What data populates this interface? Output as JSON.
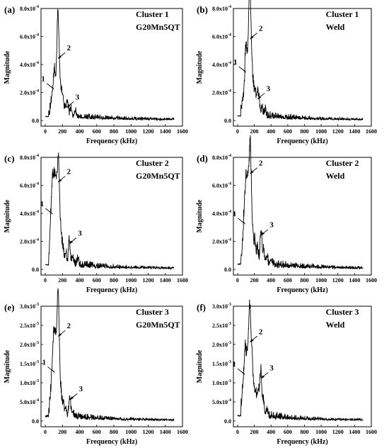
{
  "chart_data": [
    {
      "type": "line",
      "panel_label": "(a)",
      "title": "Cluster 1",
      "material": "G20Mn5QT",
      "xlabel": "Frequency (kHz)",
      "ylabel": "Magnitude",
      "xlim": [
        -50,
        1600
      ],
      "ylim": [
        -0.4,
        8.0
      ],
      "y_exponent": "-4",
      "xticks": [
        0,
        200,
        400,
        600,
        800,
        1000,
        1200,
        1400,
        1600
      ],
      "yticks": [
        0.0,
        2.0,
        4.0,
        6.0,
        8.0
      ],
      "ytick_labels": [
        "0.0",
        "2.0x10",
        "4.0x10",
        "6.0x10",
        "8.0x10"
      ],
      "spectrum": {
        "noise": 0.25,
        "floor": 0.12,
        "taper": 500,
        "width": 10,
        "peaks": [
          [
            70,
            0.8
          ],
          [
            90,
            1.4
          ],
          [
            105,
            2.2
          ],
          [
            120,
            1.6
          ],
          [
            140,
            3.4
          ],
          [
            150,
            4.4
          ],
          [
            165,
            2.4
          ],
          [
            185,
            1.4
          ],
          [
            205,
            1.2
          ],
          [
            235,
            0.7
          ],
          [
            260,
            1.0
          ],
          [
            300,
            0.6
          ],
          [
            350,
            0.4
          ]
        ]
      },
      "annotations": [
        {
          "label": "1",
          "x": 100,
          "y": 2.2
        },
        {
          "label": "2",
          "x": 150,
          "y": 4.4
        },
        {
          "label": "3",
          "x": 250,
          "y": 0.9
        }
      ]
    },
    {
      "type": "line",
      "panel_label": "(b)",
      "title": "Cluster 1",
      "material": "Weld",
      "xlabel": "Frequency (kHz)",
      "ylabel": "Magnitude",
      "xlim": [
        -50,
        1600
      ],
      "ylim": [
        -0.4,
        8.0
      ],
      "y_exponent": "-4",
      "xticks": [
        0,
        200,
        400,
        600,
        800,
        1000,
        1200,
        1400,
        1600
      ],
      "yticks": [
        0.0,
        2.0,
        4.0,
        6.0,
        8.0
      ],
      "ytick_labels": [
        "0.0",
        "2.0x10",
        "4.0x10",
        "6.0x10",
        "8.0x10"
      ],
      "spectrum": {
        "noise": 0.3,
        "floor": 0.12,
        "taper": 450,
        "width": 10,
        "peaks": [
          [
            60,
            0.8
          ],
          [
            85,
            1.8
          ],
          [
            100,
            3.3
          ],
          [
            115,
            2.6
          ],
          [
            135,
            5.6
          ],
          [
            150,
            5.8
          ],
          [
            165,
            3.2
          ],
          [
            185,
            2.0
          ],
          [
            210,
            1.6
          ],
          [
            235,
            1.4
          ],
          [
            255,
            1.2
          ],
          [
            290,
            0.6
          ],
          [
            330,
            0.4
          ]
        ]
      },
      "annotations": [
        {
          "label": "1",
          "x": 100,
          "y": 3.4
        },
        {
          "label": "2",
          "x": 150,
          "y": 5.8
        },
        {
          "label": "3",
          "x": 240,
          "y": 1.5
        }
      ]
    },
    {
      "type": "line",
      "panel_label": "(c)",
      "title": "Cluster 2",
      "material": "G20Mn5QT",
      "xlabel": "Frequency (kHz)",
      "ylabel": "Magnitude",
      "xlim": [
        -50,
        1600
      ],
      "ylim": [
        -0.4,
        8.0
      ],
      "y_exponent": "-4",
      "xticks": [
        0,
        200,
        400,
        600,
        800,
        1000,
        1200,
        1400,
        1600
      ],
      "yticks": [
        0.0,
        2.0,
        4.0,
        6.0,
        8.0
      ],
      "ytick_labels": [
        "0.0",
        "2.0x10",
        "4.0x10",
        "6.0x10",
        "8.0x10"
      ],
      "spectrum": {
        "noise": 0.3,
        "floor": 0.12,
        "taper": 500,
        "width": 10,
        "peaks": [
          [
            55,
            1.2
          ],
          [
            70,
            2.6
          ],
          [
            85,
            3.8
          ],
          [
            100,
            4.0
          ],
          [
            115,
            3.4
          ],
          [
            130,
            4.2
          ],
          [
            150,
            6.2
          ],
          [
            165,
            3.0
          ],
          [
            185,
            1.6
          ],
          [
            205,
            1.0
          ],
          [
            240,
            0.8
          ],
          [
            280,
            1.8
          ],
          [
            320,
            0.6
          ],
          [
            380,
            0.4
          ]
        ]
      },
      "annotations": [
        {
          "label": "1",
          "x": 85,
          "y": 3.9
        },
        {
          "label": "2",
          "x": 150,
          "y": 6.2
        },
        {
          "label": "3",
          "x": 280,
          "y": 1.8
        }
      ]
    },
    {
      "type": "line",
      "panel_label": "(d)",
      "title": "Cluster 2",
      "material": "Weld",
      "xlabel": "Frequency (kHz)",
      "ylabel": "Magnitude",
      "xlim": [
        -50,
        1600
      ],
      "ylim": [
        -0.4,
        8.0
      ],
      "y_exponent": "-4",
      "xticks": [
        0,
        200,
        400,
        600,
        800,
        1000,
        1200,
        1400,
        1600
      ],
      "yticks": [
        0.0,
        2.0,
        4.0,
        6.0,
        8.0
      ],
      "ytick_labels": [
        "0.0",
        "2.0x10",
        "4.0x10",
        "6.0x10",
        "8.0x10"
      ],
      "spectrum": {
        "noise": 0.35,
        "floor": 0.14,
        "taper": 480,
        "width": 10,
        "peaks": [
          [
            60,
            1.2
          ],
          [
            80,
            2.8
          ],
          [
            95,
            3.2
          ],
          [
            110,
            4.3
          ],
          [
            130,
            5.2
          ],
          [
            150,
            6.8
          ],
          [
            165,
            3.0
          ],
          [
            185,
            1.8
          ],
          [
            210,
            1.5
          ],
          [
            240,
            1.0
          ],
          [
            280,
            2.4
          ],
          [
            310,
            1.0
          ],
          [
            350,
            0.6
          ],
          [
            400,
            0.4
          ]
        ]
      },
      "annotations": [
        {
          "label": "1",
          "x": 90,
          "y": 3.2
        },
        {
          "label": "2",
          "x": 150,
          "y": 6.8
        },
        {
          "label": "3",
          "x": 280,
          "y": 2.4
        }
      ]
    },
    {
      "type": "line",
      "panel_label": "(e)",
      "title": "Cluster 3",
      "material": "G20Mn5QT",
      "xlabel": "Frequency (kHz)",
      "ylabel": "Magnitude",
      "xlim": [
        -50,
        1600
      ],
      "ylim": [
        -0.15,
        3.0
      ],
      "y_exponent": "-3",
      "xticks": [
        0,
        200,
        400,
        600,
        800,
        1000,
        1200,
        1400,
        1600
      ],
      "yticks": [
        0.0,
        0.5,
        1.0,
        1.5,
        2.0,
        2.5,
        3.0
      ],
      "ytick_labels": [
        "0.0",
        "5.0x10",
        "1.0x10",
        "1.5x10",
        "2.0x10",
        "2.5x10",
        "3.0x10"
      ],
      "ytick_exponents": [
        "",
        "-4",
        "-3",
        "-3",
        "-3",
        "-3",
        "-3"
      ],
      "spectrum": {
        "noise": 0.1,
        "floor": 0.04,
        "taper": 450,
        "width": 10,
        "peaks": [
          [
            60,
            0.4
          ],
          [
            80,
            0.9
          ],
          [
            95,
            1.3
          ],
          [
            110,
            1.4
          ],
          [
            125,
            1.2
          ],
          [
            140,
            1.1
          ],
          [
            150,
            2.25
          ],
          [
            165,
            1.0
          ],
          [
            185,
            0.5
          ],
          [
            210,
            0.3
          ],
          [
            240,
            0.2
          ],
          [
            285,
            0.5
          ],
          [
            320,
            0.15
          ]
        ]
      },
      "annotations": [
        {
          "label": "1",
          "x": 110,
          "y": 1.25
        },
        {
          "label": "2",
          "x": 150,
          "y": 2.2
        },
        {
          "label": "3",
          "x": 290,
          "y": 0.55
        }
      ]
    },
    {
      "type": "line",
      "panel_label": "(f)",
      "title": "Cluster 3",
      "material": "Weld",
      "xlabel": "Frequency (kHz)",
      "ylabel": "Magnitude",
      "xlim": [
        -50,
        1600
      ],
      "ylim": [
        -0.15,
        3.0
      ],
      "y_exponent": "-3",
      "xticks": [
        0,
        200,
        400,
        600,
        800,
        1000,
        1200,
        1400,
        1600
      ],
      "yticks": [
        0.0,
        0.5,
        1.0,
        1.5,
        2.0,
        2.5,
        3.0
      ],
      "ytick_labels": [
        "0.0",
        "5.0x10",
        "1.0x10",
        "1.5x10",
        "2.0x10",
        "2.5x10",
        "3.0x10"
      ],
      "ytick_exponents": [
        "",
        "-4",
        "-3",
        "-3",
        "-3",
        "-3",
        "-3"
      ],
      "spectrum": {
        "noise": 0.12,
        "floor": 0.04,
        "taper": 450,
        "width": 10,
        "peaks": [
          [
            60,
            0.5
          ],
          [
            80,
            1.0
          ],
          [
            95,
            1.2
          ],
          [
            115,
            1.3
          ],
          [
            135,
            1.6
          ],
          [
            150,
            2.05
          ],
          [
            170,
            1.4
          ],
          [
            190,
            0.7
          ],
          [
            215,
            0.6
          ],
          [
            240,
            0.55
          ],
          [
            260,
            0.5
          ],
          [
            280,
            1.1
          ],
          [
            310,
            0.4
          ],
          [
            350,
            0.2
          ]
        ]
      },
      "annotations": [
        {
          "label": "1",
          "x": 85,
          "y": 1.2
        },
        {
          "label": "2",
          "x": 150,
          "y": 2.05
        },
        {
          "label": "3",
          "x": 280,
          "y": 1.1
        }
      ]
    }
  ]
}
